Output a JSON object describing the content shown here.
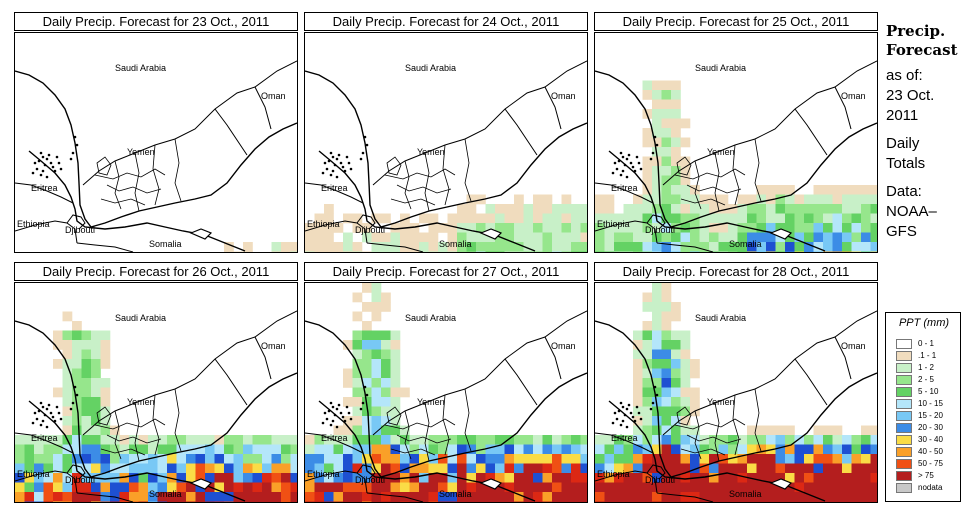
{
  "palette": {
    "0-1": "#ffffff",
    "1": "#f0dcbe",
    "2": "#c8f0c8",
    "3": "#96e68c",
    "4": "#64d264",
    "5": "#b4e6fa",
    "6": "#78c8f5",
    "7": "#3c8ce6",
    "8": "#1e50d2",
    "9": "#fadc46",
    "10": "#faa028",
    "11": "#f05014",
    "12": "#dc2814",
    "13": "#b41e1e",
    "nodata": "#c8c8c8"
  },
  "sidebar": {
    "title_line1": "Precip.",
    "title_line2": "Forecast",
    "asof_label": "as of:",
    "date_line1": "23 Oct.",
    "date_line2": "2011",
    "totals_line1": "Daily",
    "totals_line2": "Totals",
    "data_line1": "Data:",
    "data_line2": "NOAA–",
    "data_line3": "GFS"
  },
  "legend": {
    "title": "PPT (mm)",
    "items": [
      {
        "label": "0 - 1",
        "color": "#ffffff"
      },
      {
        "label": ".1 - 1",
        "color": "#f0dcbe"
      },
      {
        "label": "1 - 2",
        "color": "#c8f0c8"
      },
      {
        "label": "2 - 5",
        "color": "#96e68c"
      },
      {
        "label": "5 - 10",
        "color": "#64d264"
      },
      {
        "label": "10 - 15",
        "color": "#b4e6fa"
      },
      {
        "label": "15 - 20",
        "color": "#78c8f5"
      },
      {
        "label": "20 - 30",
        "color": "#3c8ce6"
      },
      {
        "label": "30 - 40",
        "color": "#fadc46"
      },
      {
        "label": "40 - 50",
        "color": "#faa028"
      },
      {
        "label": "50 - 75",
        "color": "#f05014"
      },
      {
        "label": "> 75",
        "color": "#b41e1e"
      },
      {
        "label": "nodata",
        "color": "#c8c8c8"
      }
    ]
  },
  "places": {
    "saudi": "Saudi Arabia",
    "oman": "Oman",
    "yemen": "Yemen",
    "eritrea": "Eritrea",
    "ethiopia": "Ethiopia",
    "djibouti": "Djibouti",
    "somalia": "Somalia"
  },
  "panels": [
    {
      "title": "Daily Precip. Forecast for  23 Oct., 2011",
      "intensity": 0
    },
    {
      "title": "Daily Precip. Forecast for  24 Oct., 2011",
      "intensity": 1
    },
    {
      "title": "Daily Precip. Forecast for  25 Oct., 2011",
      "intensity": 2
    },
    {
      "title": "Daily Precip. Forecast for  26 Oct., 2011",
      "intensity": 3
    },
    {
      "title": "Daily Precip. Forecast for  27 Oct., 2011",
      "intensity": 4
    },
    {
      "title": "Daily Precip. Forecast for  28 Oct., 2011",
      "intensity": 5
    }
  ]
}
